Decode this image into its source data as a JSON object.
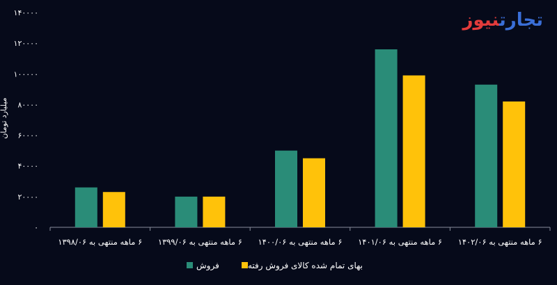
{
  "logo": {
    "part_a": "تجارت",
    "part_b": "نیوز"
  },
  "colors": {
    "background": "#060a1a",
    "sales": "#2a8c78",
    "cost": "#ffc20a",
    "logo_blue": "#3a6fd8",
    "logo_red": "#e23b3b"
  },
  "chart_data": {
    "type": "bar",
    "ylabel": "میلیارد تومان",
    "ylim": [
      0,
      140000
    ],
    "yticks": [
      "۰",
      "۲۰۰۰۰",
      "۴۰۰۰۰",
      "۶۰۰۰۰",
      "۸۰۰۰۰",
      "۱۰۰۰۰۰",
      "۱۲۰۰۰۰",
      "۱۴۰۰۰۰"
    ],
    "ytick_values": [
      0,
      20000,
      40000,
      60000,
      80000,
      100000,
      120000,
      140000
    ],
    "categories": [
      "۶ ماهه منتهی به ۱۳۹۸/۰۶",
      "۶ ماهه منتهی به ۱۳۹۹/۰۶",
      "۶ ماهه منتهی به ۱۴۰۰/۰۶",
      "۶ ماهه منتهی به ۱۴۰۱/۰۶",
      "۶ ماهه منتهی به ۱۴۰۲/۰۶"
    ],
    "series": [
      {
        "name": "فروش",
        "color": "#2a8c78",
        "values": [
          26000,
          20000,
          50000,
          116000,
          93000
        ]
      },
      {
        "name": "بهای تمام شده کالای فروش رفته",
        "color": "#ffc20a",
        "values": [
          23000,
          20000,
          45000,
          99000,
          82000
        ]
      }
    ],
    "grid": false,
    "legend": "bottom"
  }
}
